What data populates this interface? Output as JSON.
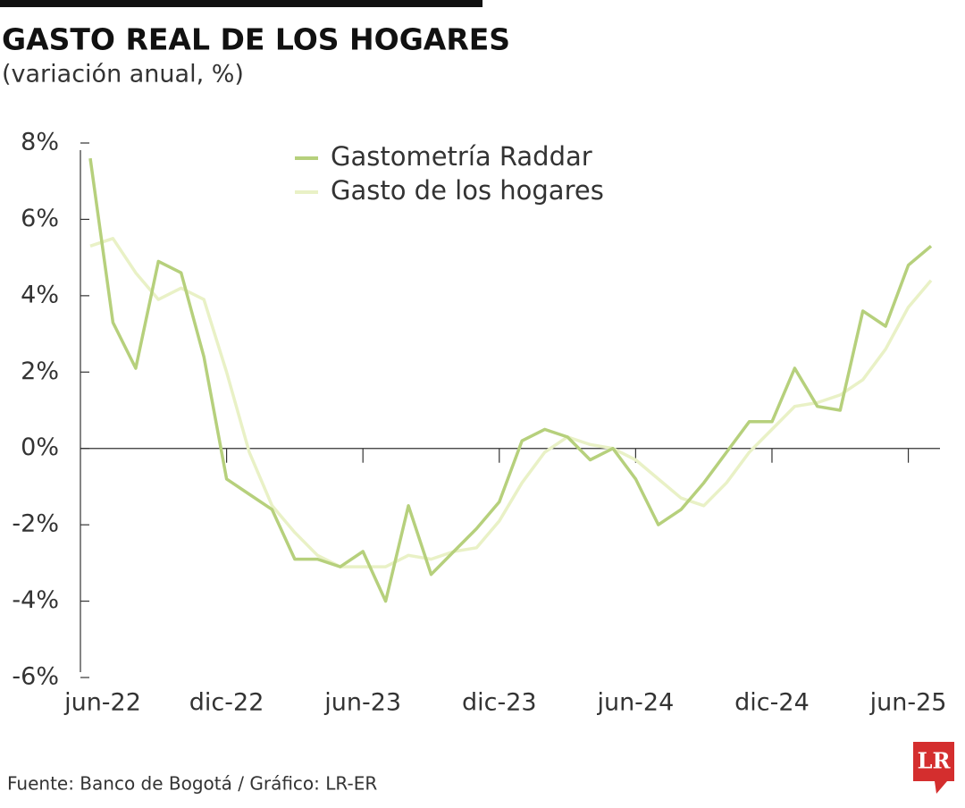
{
  "chart_data": {
    "type": "line",
    "title": "GASTO REAL DE LOS HOGARES",
    "subtitle": "(variación anual, %)",
    "source": "Fuente: Banco de Bogotá / Gráfico: LR-ER",
    "logo": "LR",
    "categories": [
      "jun-22",
      null,
      null,
      null,
      null,
      null,
      "dic-22",
      null,
      null,
      null,
      null,
      null,
      "jun-23",
      null,
      null,
      null,
      null,
      null,
      "dic-23",
      null,
      null,
      null,
      null,
      null,
      "jun-24",
      null,
      null,
      null,
      null,
      null,
      "dic-24",
      null,
      null,
      null,
      null,
      null,
      "jun-25",
      null
    ],
    "series": [
      {
        "name": "Gastometría Raddar",
        "color": "#b6d07c",
        "values": [
          7.6,
          3.3,
          2.1,
          4.9,
          4.6,
          2.4,
          -0.8,
          -1.2,
          -1.6,
          -2.9,
          -2.9,
          -3.1,
          -2.7,
          -4.0,
          -1.5,
          -3.3,
          -2.7,
          -2.1,
          -1.4,
          0.2,
          0.5,
          0.3,
          -0.3,
          0.0,
          -0.8,
          -2.0,
          -1.6,
          -0.9,
          -0.1,
          0.7,
          0.7,
          2.1,
          1.1,
          1.0,
          3.6,
          3.2,
          4.8,
          5.3
        ]
      },
      {
        "name": "Gasto de los hogares",
        "color": "#e9f1c6",
        "values": [
          5.3,
          5.5,
          4.6,
          3.9,
          4.2,
          3.9,
          2.0,
          -0.1,
          -1.5,
          -2.2,
          -2.8,
          -3.1,
          -3.1,
          -3.1,
          -2.8,
          -2.9,
          -2.7,
          -2.6,
          -1.9,
          -0.9,
          -0.1,
          0.3,
          0.1,
          0.0,
          -0.3,
          -0.8,
          -1.3,
          -1.5,
          -0.9,
          -0.1,
          0.5,
          1.1,
          1.2,
          1.4,
          1.8,
          2.6,
          3.7,
          4.4
        ]
      }
    ],
    "ylim": [
      -6,
      8
    ],
    "yticks": [
      {
        "value": 8,
        "label": "8%"
      },
      {
        "value": 6,
        "label": "6%"
      },
      {
        "value": 4,
        "label": "4%"
      },
      {
        "value": 2,
        "label": "2%"
      },
      {
        "value": 0,
        "label": "0%"
      },
      {
        "value": -2,
        "label": "-2%"
      },
      {
        "value": -4,
        "label": "-4%"
      },
      {
        "value": -6,
        "label": "-6%"
      }
    ],
    "legend": "top"
  }
}
